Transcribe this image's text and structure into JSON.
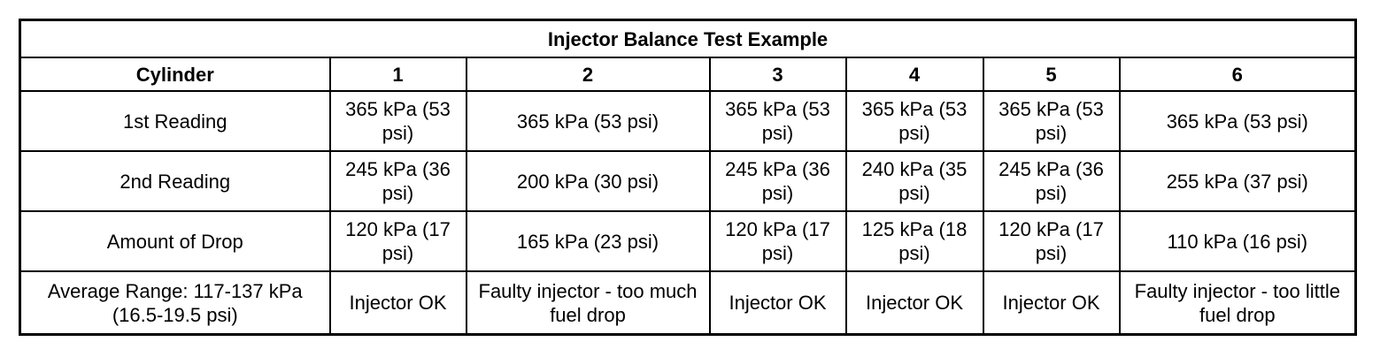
{
  "table": {
    "title": "Injector Balance Test Example",
    "headers": [
      "Cylinder",
      "1",
      "2",
      "3",
      "4",
      "5",
      "6"
    ],
    "rows": [
      {
        "label": "1st Reading",
        "cells": [
          "365 kPa (53 psi)",
          "365 kPa (53 psi)",
          "365 kPa (53 psi)",
          "365 kPa (53 psi)",
          "365 kPa (53 psi)",
          "365 kPa (53 psi)"
        ]
      },
      {
        "label": "2nd Reading",
        "cells": [
          "245 kPa (36 psi)",
          "200 kPa (30 psi)",
          "245 kPa (36 psi)",
          "240 kPa (35 psi)",
          "245 kPa (36 psi)",
          "255 kPa (37 psi)"
        ]
      },
      {
        "label": "Amount of Drop",
        "cells": [
          "120 kPa (17 psi)",
          "165 kPa (23 psi)",
          "120 kPa (17 psi)",
          "125 kPa (18 psi)",
          "120 kPa (17 psi)",
          "110 kPa (16 psi)"
        ]
      },
      {
        "label": "Average Range: 117-137 kPa (16.5-19.5 psi)",
        "cells": [
          "Injector OK",
          "Faulty injector - too much fuel drop",
          "Injector OK",
          "Injector OK",
          "Injector OK",
          "Faulty injector - too little fuel drop"
        ]
      }
    ]
  }
}
